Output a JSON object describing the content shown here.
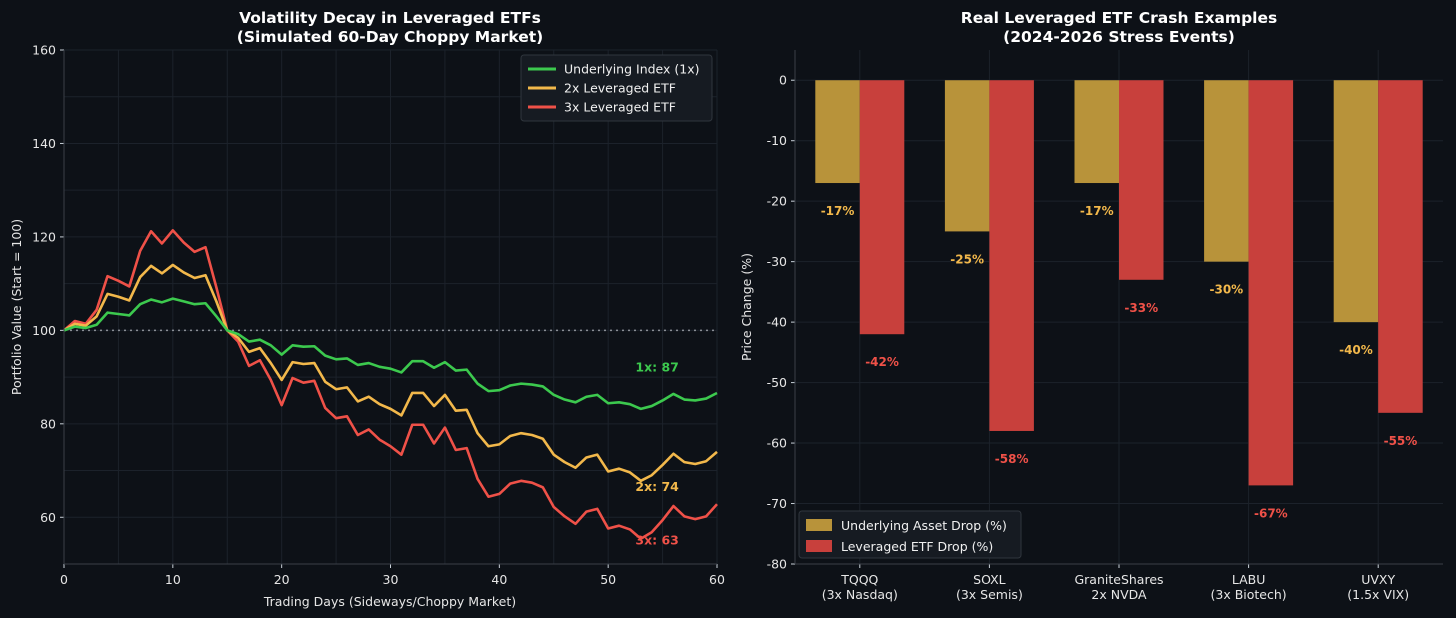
{
  "colors": {
    "background": "#0d1117",
    "underlying": "#3cc94e",
    "etf2x": "#f2b84b",
    "etf3x": "#ef5148",
    "bar_underlying": "#b8933a",
    "bar_leveraged": "#c8403c",
    "label_underlying": "#f2b84b",
    "label_leveraged": "#ef5148"
  },
  "chart_data": [
    {
      "type": "line",
      "title": "Volatility Decay in Leveraged ETFs",
      "subtitle": "(Simulated 60-Day Choppy Market)",
      "xlabel": "Trading Days (Sideways/Choppy Market)",
      "ylabel": "Portfolio Value (Start = 100)",
      "xlim": [
        0,
        60
      ],
      "ylim": [
        50,
        160
      ],
      "xticks": [
        0,
        10,
        20,
        30,
        40,
        50,
        60
      ],
      "yticks": [
        60,
        80,
        100,
        120,
        140,
        160
      ],
      "grid": true,
      "legend_position": "top-right",
      "reference_line": 100,
      "x": [
        0,
        1,
        2,
        3,
        4,
        5,
        6,
        7,
        8,
        9,
        10,
        11,
        12,
        13,
        14,
        15,
        16,
        17,
        18,
        19,
        20,
        21,
        22,
        23,
        24,
        25,
        26,
        27,
        28,
        29,
        30,
        31,
        32,
        33,
        34,
        35,
        36,
        37,
        38,
        39,
        40,
        41,
        42,
        43,
        44,
        45,
        46,
        47,
        48,
        49,
        50,
        51,
        52,
        53,
        54,
        55,
        56,
        57,
        58,
        59,
        60
      ],
      "series": [
        {
          "name": "Underlying Index (1x)",
          "values": [
            100,
            100.8,
            100.5,
            101.2,
            103.8,
            103.5,
            103.2,
            105.6,
            106.6,
            106.0,
            106.8,
            106.2,
            105.6,
            105.8,
            103.0,
            100.0,
            99.2,
            97.6,
            98.0,
            96.8,
            94.8,
            96.8,
            96.5,
            96.6,
            94.6,
            93.8,
            94.0,
            92.6,
            93.0,
            92.2,
            91.8,
            91.0,
            93.4,
            93.4,
            92.0,
            93.2,
            91.4,
            91.6,
            88.6,
            87.0,
            87.2,
            88.2,
            88.6,
            88.4,
            88.0,
            86.2,
            85.2,
            84.6,
            85.8,
            86.2,
            84.4,
            84.6,
            84.2,
            83.2,
            83.8,
            85.0,
            86.4,
            85.2,
            85.0,
            85.4,
            86.6
          ]
        },
        {
          "name": "2x Leveraged ETF",
          "values": [
            100,
            101.4,
            101.0,
            103.0,
            107.8,
            107.2,
            106.4,
            111.4,
            113.8,
            112.2,
            114.0,
            112.4,
            111.2,
            111.8,
            106.2,
            100.0,
            98.4,
            95.4,
            96.2,
            93.0,
            89.4,
            93.2,
            92.8,
            93.0,
            89.0,
            87.4,
            87.8,
            84.8,
            85.8,
            84.2,
            83.2,
            81.8,
            86.6,
            86.6,
            83.8,
            86.2,
            82.8,
            83.0,
            78.0,
            75.2,
            75.6,
            77.4,
            78.0,
            77.6,
            76.8,
            73.4,
            71.8,
            70.6,
            72.8,
            73.4,
            69.8,
            70.4,
            69.6,
            67.8,
            69.0,
            71.2,
            73.6,
            71.8,
            71.4,
            72.0,
            74.0
          ]
        },
        {
          "name": "3x Leveraged ETF",
          "values": [
            100,
            102.0,
            101.4,
            104.4,
            111.6,
            110.6,
            109.4,
            117.0,
            121.2,
            118.6,
            121.4,
            118.8,
            116.8,
            117.8,
            109.2,
            100.0,
            97.6,
            92.4,
            93.6,
            89.4,
            84.0,
            89.8,
            88.8,
            89.2,
            83.4,
            81.2,
            81.6,
            77.6,
            78.8,
            76.6,
            75.2,
            73.4,
            79.8,
            79.8,
            75.8,
            79.2,
            74.4,
            74.8,
            68.2,
            64.4,
            65.0,
            67.2,
            67.8,
            67.4,
            66.4,
            62.2,
            60.2,
            58.6,
            61.2,
            61.8,
            57.6,
            58.2,
            57.4,
            55.4,
            56.8,
            59.4,
            62.4,
            60.2,
            59.6,
            60.2,
            62.8
          ]
        }
      ],
      "annotations": [
        {
          "text": "1x: 87",
          "x": 52.5,
          "y": 92,
          "color_key": "underlying"
        },
        {
          "text": "2x: 74",
          "x": 52.5,
          "y": 66.5,
          "color_key": "etf2x"
        },
        {
          "text": "3x: 63",
          "x": 52.5,
          "y": 55,
          "color_key": "etf3x"
        }
      ]
    },
    {
      "type": "bar",
      "title": "Real Leveraged ETF Crash Examples",
      "subtitle": "(2024-2026 Stress Events)",
      "xlabel": "",
      "ylabel": "Price Change (%)",
      "ylim": [
        -80,
        5
      ],
      "yticks": [
        0,
        -10,
        -20,
        -30,
        -40,
        -50,
        -60,
        -70,
        -80
      ],
      "grid": true,
      "legend_position": "bottom-left",
      "categories": [
        [
          "TQQQ",
          "(3x Nasdaq)"
        ],
        [
          "SOXL",
          "(3x Semis)"
        ],
        [
          "GraniteShares",
          "2x NVDA"
        ],
        [
          "LABU",
          "(3x Biotech)"
        ],
        [
          "UVXY",
          "(1.5x VIX)"
        ]
      ],
      "series": [
        {
          "name": "Underlying Asset Drop (%)",
          "values": [
            -17,
            -25,
            -17,
            -30,
            -40
          ],
          "labels": [
            "-17%",
            "-25%",
            "-17%",
            "-30%",
            "-40%"
          ]
        },
        {
          "name": "Leveraged ETF Drop (%)",
          "values": [
            -42,
            -58,
            -33,
            -67,
            -55
          ],
          "labels": [
            "-42%",
            "-58%",
            "-33%",
            "-67%",
            "-55%"
          ]
        }
      ]
    }
  ]
}
